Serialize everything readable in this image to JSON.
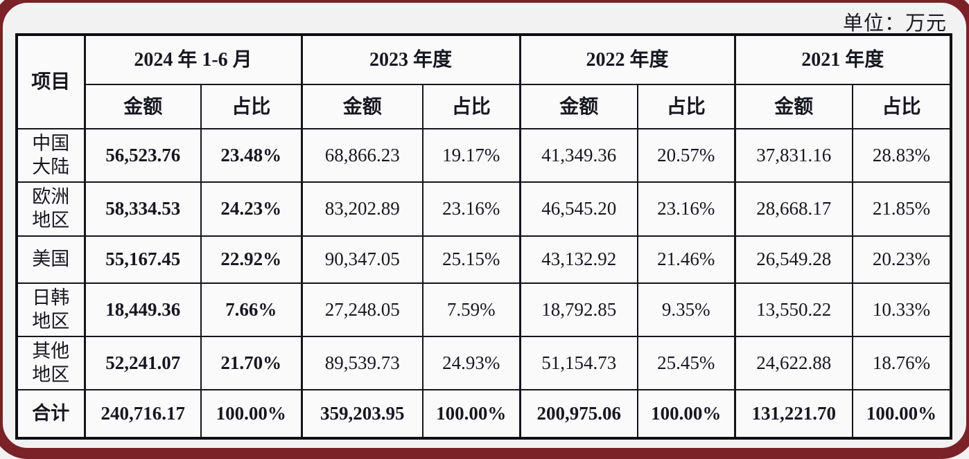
{
  "page": {
    "unit_label": "单位：万元"
  },
  "colors": {
    "frame_red": "#7a2227",
    "table_border": "#0e0e12",
    "cell_background": "#fafafb",
    "page_background": "#f2f2f3"
  },
  "table": {
    "item_header": "项目",
    "periods": [
      {
        "label": "2024 年 1-6 月",
        "amount_label": "金额",
        "ratio_label": "占比"
      },
      {
        "label": "2023 年度",
        "amount_label": "金额",
        "ratio_label": "占比"
      },
      {
        "label": "2022 年度",
        "amount_label": "金额",
        "ratio_label": "占比"
      },
      {
        "label": "2021 年度",
        "amount_label": "金额",
        "ratio_label": "占比"
      }
    ],
    "rows": [
      {
        "name": "中国\n大陆",
        "is_total": false,
        "values": [
          "56,523.76",
          "23.48%",
          "68,866.23",
          "19.17%",
          "41,349.36",
          "20.57%",
          "37,831.16",
          "28.83%"
        ]
      },
      {
        "name": "欧洲\n地区",
        "is_total": false,
        "values": [
          "58,334.53",
          "24.23%",
          "83,202.89",
          "23.16%",
          "46,545.20",
          "23.16%",
          "28,668.17",
          "21.85%"
        ]
      },
      {
        "name": "美国",
        "is_total": false,
        "values": [
          "55,167.45",
          "22.92%",
          "90,347.05",
          "25.15%",
          "43,132.92",
          "21.46%",
          "26,549.28",
          "20.23%"
        ]
      },
      {
        "name": "日韩\n地区",
        "is_total": false,
        "values": [
          "18,449.36",
          "7.66%",
          "27,248.05",
          "7.59%",
          "18,792.85",
          "9.35%",
          "13,550.22",
          "10.33%"
        ]
      },
      {
        "name": "其他\n地区",
        "is_total": false,
        "values": [
          "52,241.07",
          "21.70%",
          "89,539.73",
          "24.93%",
          "51,154.73",
          "25.45%",
          "24,622.88",
          "18.76%"
        ]
      },
      {
        "name": "合计",
        "is_total": true,
        "values": [
          "240,716.17",
          "100.00%",
          "359,203.95",
          "100.00%",
          "200,975.06",
          "100.00%",
          "131,221.70",
          "100.00%"
        ]
      }
    ]
  }
}
